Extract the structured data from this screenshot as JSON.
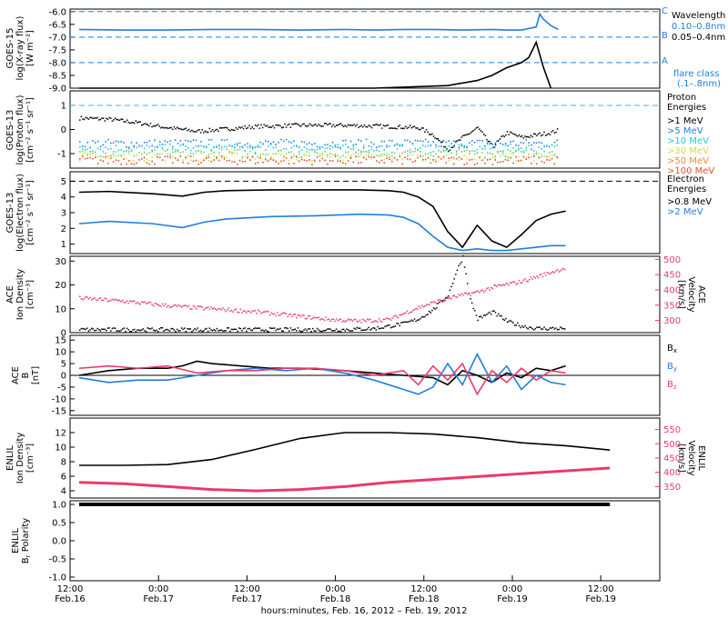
{
  "x_axis": {
    "tick_labels_top": [
      "12:00",
      "0:00",
      "12:00",
      "0:00",
      "12:00",
      "0:00",
      "12:00"
    ],
    "tick_labels_bottom": [
      "Feb.16",
      "Feb.17",
      "Feb.17",
      "Feb.18",
      "Feb.18",
      "Feb.19",
      "Feb.19"
    ],
    "label": "hours:minutes, Feb. 16, 2012 – Feb. 19, 2012"
  },
  "colors": {
    "black": "#000000",
    "blue": "#1e7fe0",
    "cyan": "#22c7e0",
    "green": "#63d36a",
    "yellow": "#d9d94a",
    "orange": "#f08c2a",
    "red": "#e0502a",
    "pink": "#ea3a6a"
  },
  "chart_data": [
    {
      "type": "line",
      "id": "goes15-xray",
      "ylabel": "GOES-15 log(X-ray flux) [W m-2]",
      "ylim": [
        -9.0,
        -5.9
      ],
      "yticks": [
        "-6.0",
        "-6.5",
        "-7.0",
        "-7.5",
        "-8.0",
        "-8.5",
        "-9.0"
      ],
      "flare_class_lines": [
        {
          "label": "C",
          "y": -6.0
        },
        {
          "label": "B",
          "y": -7.0
        },
        {
          "label": "A",
          "y": -8.0
        }
      ],
      "legend": {
        "title": "Wavelength",
        "entries": [
          "0.10–0.8nm",
          "0.05–0.4nm"
        ],
        "note": [
          "flare class",
          "(.1–.8nm)"
        ]
      },
      "series": [
        {
          "name": "0.10–0.8nm",
          "color": "blue",
          "x": [
            0,
            6,
            12,
            18,
            24,
            30,
            36,
            40,
            44,
            48,
            52,
            56,
            58,
            60,
            62,
            62.5,
            63,
            64,
            65
          ],
          "y": [
            -6.7,
            -6.72,
            -6.72,
            -6.7,
            -6.7,
            -6.72,
            -6.7,
            -6.72,
            -6.7,
            -6.7,
            -6.72,
            -6.7,
            -6.72,
            -6.72,
            -6.6,
            -6.1,
            -6.3,
            -6.55,
            -6.7
          ]
        },
        {
          "name": "0.05–0.4nm",
          "color": "black",
          "x": [
            0,
            10,
            20,
            30,
            40,
            50,
            54,
            56,
            58,
            60,
            61,
            62,
            63,
            64
          ],
          "y": [
            -9.0,
            -9.0,
            -9.0,
            -9.0,
            -9.0,
            -8.9,
            -8.7,
            -8.5,
            -8.2,
            -8.0,
            -7.8,
            -7.2,
            -8.2,
            -9.0
          ]
        }
      ]
    },
    {
      "type": "scatter",
      "id": "goes13-proton",
      "ylabel": "GOES-13 log(Proton flux) [cm-2 s-1 sr-1]",
      "ylim": [
        -1.6,
        1.6
      ],
      "yticks": [
        "1",
        "0",
        "-1"
      ],
      "legend": {
        "title": "Proton Energies",
        "entries": [
          ">1 MeV",
          ">5 MeV",
          ">10 MeV",
          ">30 MeV",
          ">50 MeV",
          ">100 MeV"
        ]
      },
      "series": [
        {
          "name": ">1 MeV",
          "color": "black",
          "x": [
            0,
            4,
            8,
            12,
            16,
            20,
            24,
            30,
            36,
            42,
            46,
            48,
            50,
            52,
            54,
            56,
            58,
            60,
            62,
            64,
            65
          ],
          "y": [
            0.5,
            0.45,
            0.3,
            0.1,
            -0.05,
            0.05,
            0.15,
            0.2,
            0.2,
            0.15,
            0.1,
            -0.2,
            -0.8,
            -0.3,
            0.1,
            -0.7,
            -0.1,
            -0.3,
            -0.2,
            -0.1,
            0.0
          ]
        },
        {
          "name": ">5 MeV",
          "color": "blue",
          "level": -0.55
        },
        {
          "name": ">10 MeV",
          "color": "cyan",
          "level": -0.75
        },
        {
          "name": ">30 MeV",
          "color": "green",
          "level": -0.95
        },
        {
          "name": ">50 MeV",
          "color": "yellow",
          "level": -1.1
        },
        {
          "name": ">100 MeV",
          "color": "red",
          "level": -1.25
        }
      ],
      "reference_line": 1.0
    },
    {
      "type": "line",
      "id": "goes13-electron",
      "ylabel": "GOES-13 log(Electron flux) [cm-2 s-1 sr-1]",
      "ylim": [
        0.4,
        5.6
      ],
      "yticks": [
        "5",
        "4",
        "3",
        "2",
        "1"
      ],
      "legend": {
        "title": "Electron Energies",
        "entries": [
          ">0.8 MeV",
          ">2 MeV"
        ]
      },
      "reference_line": 5.0,
      "series": [
        {
          "name": ">0.8 MeV",
          "color": "black",
          "x": [
            0,
            4,
            10,
            14,
            17,
            20,
            26,
            32,
            38,
            42,
            44,
            46,
            48,
            50,
            52,
            54,
            56,
            58,
            60,
            62,
            64,
            66
          ],
          "y": [
            4.3,
            4.35,
            4.2,
            4.05,
            4.3,
            4.4,
            4.45,
            4.45,
            4.45,
            4.4,
            4.3,
            4.0,
            3.4,
            1.8,
            0.8,
            2.2,
            1.2,
            0.8,
            1.6,
            2.5,
            2.9,
            3.1
          ]
        },
        {
          "name": ">2 MeV",
          "color": "blue",
          "x": [
            0,
            4,
            10,
            14,
            17,
            20,
            26,
            32,
            38,
            42,
            44,
            46,
            48,
            50,
            52,
            54,
            56,
            58,
            60,
            62,
            64,
            66
          ],
          "y": [
            2.3,
            2.45,
            2.3,
            2.05,
            2.4,
            2.6,
            2.75,
            2.8,
            2.9,
            2.85,
            2.7,
            2.3,
            1.5,
            0.8,
            0.6,
            0.7,
            0.6,
            0.6,
            0.7,
            0.8,
            0.9,
            0.9
          ]
        }
      ]
    },
    {
      "type": "scatter",
      "id": "ace-density-velocity",
      "ylabel": "ACE Ion Density [cm-3]",
      "ylabel_right": "ACE Velocity [km/s]",
      "ylim": [
        0,
        32
      ],
      "ylim_right": [
        260,
        510
      ],
      "yticks": [
        "30",
        "20",
        "10",
        "0"
      ],
      "yticks_right": [
        "500",
        "450",
        "400",
        "350",
        "300"
      ],
      "series": [
        {
          "name": "Ion Density",
          "color": "black",
          "axis": "left",
          "x": [
            0,
            10,
            20,
            30,
            36,
            40,
            44,
            46,
            48,
            50,
            51,
            52,
            53,
            54,
            56,
            58,
            60,
            62,
            64,
            66
          ],
          "y": [
            1.5,
            1.5,
            1.5,
            1.5,
            1.5,
            2,
            4,
            6,
            10,
            16,
            25,
            32,
            14,
            6,
            9,
            5,
            3,
            2,
            2,
            2
          ]
        },
        {
          "name": "Velocity",
          "color": "pink",
          "axis": "right",
          "x": [
            0,
            6,
            12,
            18,
            24,
            30,
            34,
            38,
            42,
            44,
            46,
            48,
            50,
            52,
            54,
            56,
            58,
            60,
            62,
            64,
            66
          ],
          "y": [
            375,
            365,
            350,
            340,
            330,
            315,
            305,
            300,
            305,
            325,
            345,
            360,
            375,
            385,
            395,
            410,
            420,
            430,
            445,
            460,
            475
          ]
        }
      ]
    },
    {
      "type": "line",
      "id": "ace-bfield",
      "ylabel": "ACE B [nT]",
      "ylim": [
        -17,
        17
      ],
      "yticks": [
        "15",
        "10",
        "5",
        "0",
        "-5",
        "-10",
        "-15"
      ],
      "legend": {
        "entries": [
          "Bx",
          "By",
          "Bz"
        ]
      },
      "series": [
        {
          "name": "Bx",
          "color": "black",
          "x": [
            0,
            4,
            8,
            12,
            14,
            16,
            18,
            22,
            26,
            30,
            36,
            40,
            44,
            48,
            50,
            52,
            54,
            56,
            58,
            60,
            62,
            64,
            66
          ],
          "y": [
            0,
            2,
            3,
            3,
            4,
            6,
            5,
            4,
            3,
            3,
            2,
            1,
            0,
            -1,
            -4,
            2,
            0,
            -3,
            1,
            -1,
            3,
            2,
            4
          ]
        },
        {
          "name": "By",
          "color": "blue",
          "x": [
            0,
            4,
            8,
            12,
            16,
            20,
            24,
            28,
            32,
            36,
            40,
            44,
            46,
            48,
            50,
            52,
            54,
            56,
            58,
            60,
            62,
            64,
            66
          ],
          "y": [
            -1,
            -3,
            -2,
            -2,
            0,
            2,
            3,
            2,
            3,
            1,
            -2,
            -6,
            -8,
            -5,
            5,
            -4,
            9,
            -3,
            4,
            -6,
            0,
            -3,
            -4
          ]
        },
        {
          "name": "Bz",
          "color": "pink",
          "x": [
            0,
            4,
            8,
            12,
            16,
            20,
            24,
            28,
            32,
            36,
            40,
            44,
            46,
            48,
            50,
            52,
            54,
            56,
            58,
            60,
            62,
            64,
            66
          ],
          "y": [
            3,
            4,
            3,
            4,
            1,
            2,
            2,
            3,
            3,
            2,
            0,
            2,
            -4,
            4,
            -2,
            5,
            -8,
            2,
            -3,
            3,
            -2,
            2,
            1
          ]
        }
      ]
    },
    {
      "type": "line",
      "id": "enlil-density-velocity",
      "ylabel": "ENLIL Ion Density [cm-3]",
      "ylabel_right": "ENLIL Velocity [km/s]",
      "ylim": [
        3,
        14
      ],
      "ylim_right": [
        310,
        590
      ],
      "yticks": [
        "12",
        "10",
        "8",
        "6",
        "4"
      ],
      "yticks_right": [
        "550",
        "500",
        "450",
        "400",
        "350"
      ],
      "series": [
        {
          "name": "Ion Density",
          "color": "black",
          "axis": "left",
          "x": [
            0,
            6,
            12,
            18,
            24,
            30,
            36,
            42,
            48,
            54,
            60,
            66,
            72
          ],
          "y": [
            7.5,
            7.5,
            7.6,
            8.3,
            9.7,
            11.2,
            12.0,
            12.0,
            11.8,
            11.3,
            10.6,
            10.2,
            9.6
          ]
        },
        {
          "name": "Velocity",
          "color": "pink",
          "axis": "right",
          "x": [
            0,
            6,
            12,
            18,
            24,
            30,
            36,
            42,
            48,
            54,
            60,
            66,
            72
          ],
          "y": [
            365,
            360,
            350,
            340,
            335,
            340,
            350,
            365,
            375,
            385,
            395,
            405,
            415
          ]
        }
      ]
    },
    {
      "type": "line",
      "id": "enlil-polarity",
      "ylabel": "ENLIL Br Polarity",
      "ylim": [
        -1.1,
        1.1
      ],
      "yticks": [
        "1.0",
        "0.5",
        "0.0",
        "-0.5",
        "-1.0"
      ],
      "series": [
        {
          "name": "Polarity",
          "color": "black",
          "x": [
            0,
            72
          ],
          "y": [
            1.0,
            1.0
          ]
        }
      ]
    }
  ]
}
